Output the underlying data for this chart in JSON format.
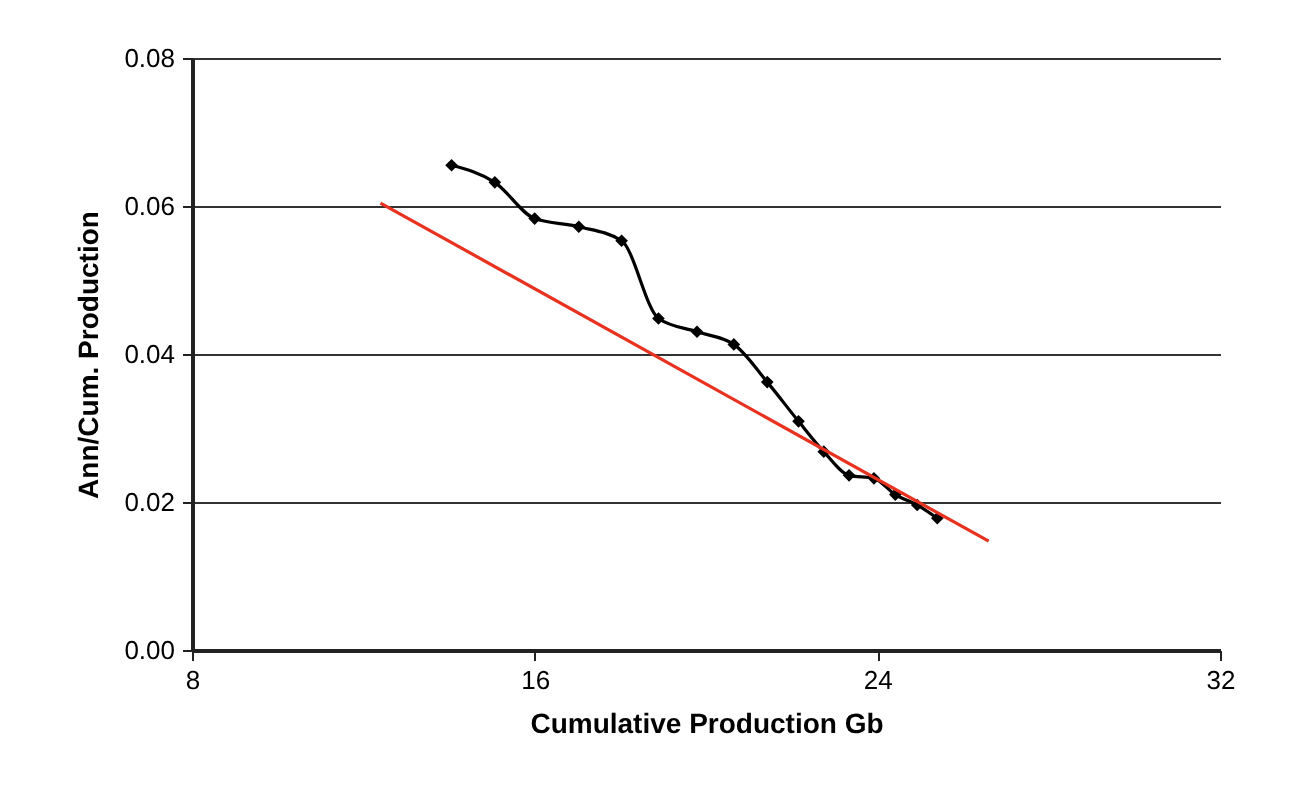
{
  "chart_data": {
    "type": "line",
    "xlabel": "Cumulative Production Gb",
    "ylabel": "Ann/Cum. Production",
    "series": [
      {
        "color": "#000000",
        "marker": "diamond",
        "x": [
          14.06,
          15.07,
          16.0,
          17.03,
          18.03,
          18.89,
          19.79,
          20.65,
          21.43,
          22.16,
          22.75,
          23.34,
          23.92,
          24.42,
          24.93,
          25.4
        ],
        "values": [
          0.0655,
          0.0632,
          0.0583,
          0.0572,
          0.0553,
          0.0448,
          0.043,
          0.0413,
          0.0362,
          0.0309,
          0.0268,
          0.0236,
          0.0232,
          0.021,
          0.0196,
          0.0178
        ]
      },
      {
        "color": "#e8311f",
        "marker": "none",
        "x": [
          12.4,
          26.6
        ],
        "values": [
          0.0604,
          0.0147
        ]
      }
    ],
    "xlim": [
      8,
      32
    ],
    "xticks": [
      8,
      16,
      24,
      32
    ],
    "ylim": [
      0,
      0.08
    ],
    "yticks": [
      {
        "value": 0,
        "label": "0.00"
      },
      {
        "value": 0.02,
        "label": "0.02"
      },
      {
        "value": 0.04,
        "label": "0.04"
      },
      {
        "value": 0.06,
        "label": "0.06"
      },
      {
        "value": 0.08,
        "label": "0.08"
      }
    ],
    "grid": "y"
  }
}
